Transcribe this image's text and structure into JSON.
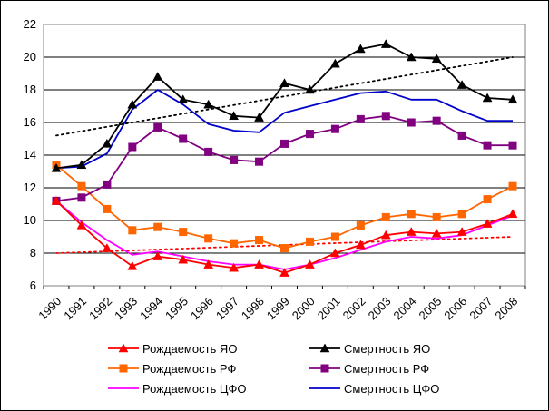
{
  "chart_data": {
    "type": "line",
    "title": "",
    "xlabel": "",
    "ylabel": "",
    "ylim": [
      6,
      22
    ],
    "yticks": [
      6,
      8,
      10,
      12,
      14,
      16,
      18,
      20,
      22
    ],
    "grid": "horizontal",
    "legend_position": "bottom",
    "x": [
      "1990",
      "1991",
      "1992",
      "1993",
      "1994",
      "1995",
      "1996",
      "1997",
      "1998",
      "1999",
      "2000",
      "2001",
      "2002",
      "2003",
      "2004",
      "2005",
      "2006",
      "2007",
      "2008"
    ],
    "series": [
      {
        "name": "Рождаемость ЯО",
        "color": "#ff0000",
        "marker": "triangle",
        "values": [
          11.2,
          9.7,
          8.3,
          7.2,
          7.8,
          7.6,
          7.3,
          7.1,
          7.3,
          6.8,
          7.3,
          8.0,
          8.5,
          9.1,
          9.3,
          9.2,
          9.3,
          9.8,
          10.4
        ]
      },
      {
        "name": "Смертность ЯО",
        "color": "#000000",
        "marker": "triangle",
        "values": [
          13.2,
          13.4,
          14.7,
          17.1,
          18.8,
          17.4,
          17.1,
          16.4,
          16.3,
          18.4,
          18.0,
          19.6,
          20.5,
          20.8,
          20.0,
          19.9,
          18.3,
          17.5,
          17.4
        ]
      },
      {
        "name": "Рождаемость РФ",
        "color": "#ff6600",
        "marker": "square",
        "values": [
          13.4,
          12.1,
          10.7,
          9.4,
          9.6,
          9.3,
          8.9,
          8.6,
          8.8,
          8.3,
          8.7,
          9.0,
          9.7,
          10.2,
          10.4,
          10.2,
          10.4,
          11.3,
          12.1
        ]
      },
      {
        "name": "Смертность РФ",
        "color": "#800080",
        "marker": "square",
        "values": [
          11.2,
          11.4,
          12.2,
          14.5,
          15.7,
          15.0,
          14.2,
          13.7,
          13.6,
          14.7,
          15.3,
          15.6,
          16.2,
          16.4,
          16.0,
          16.1,
          15.2,
          14.6,
          14.6
        ]
      },
      {
        "name": "Рождаемость ЦФО",
        "color": "#ff00ff",
        "marker": "none",
        "values": [
          11.2,
          9.9,
          8.8,
          7.9,
          8.1,
          7.8,
          7.5,
          7.3,
          7.3,
          7.0,
          7.3,
          7.7,
          8.2,
          8.7,
          9.0,
          8.9,
          9.1,
          9.7,
          10.3
        ]
      },
      {
        "name": "Смертность ЦФО",
        "color": "#0000cc",
        "marker": "none",
        "values": [
          13.2,
          13.3,
          14.1,
          16.8,
          18.0,
          17.1,
          15.9,
          15.5,
          15.4,
          16.6,
          17.0,
          17.4,
          17.8,
          17.9,
          17.4,
          17.4,
          16.7,
          16.1,
          16.1
        ]
      }
    ],
    "trendlines": [
      {
        "of": "Смертность ЯО",
        "color": "#000000",
        "style": "dotted",
        "start": 15.2,
        "end": 20.0
      },
      {
        "of": "Рождаемость ЯО",
        "color": "#ff0000",
        "style": "dotted",
        "start": 8.0,
        "end": 9.0
      }
    ]
  }
}
